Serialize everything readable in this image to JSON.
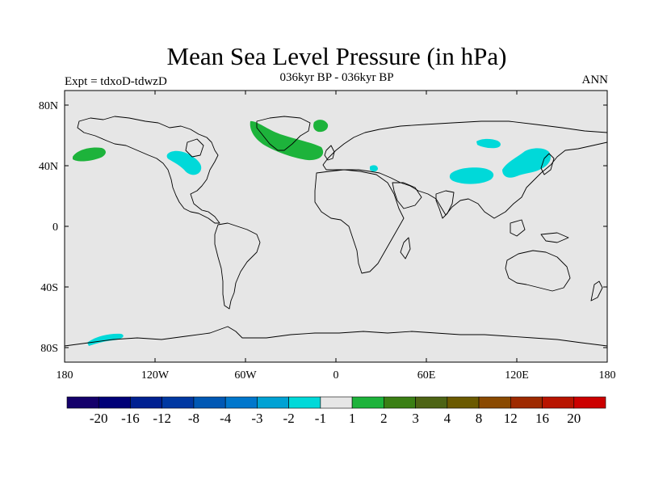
{
  "header": {
    "title": "Mean Sea Level Pressure (in hPa)",
    "subtitle": "036kyr BP - 036kyr BP",
    "left_label": "Expt = tdxoD-tdwzD",
    "right_label": "ANN"
  },
  "map": {
    "background_color": "#e6e6e6",
    "coastline_color": "#000000",
    "lat_ticks": [
      "80N",
      "40N",
      "0",
      "40S",
      "80S"
    ],
    "lon_ticks": [
      "180",
      "120W",
      "60W",
      "0",
      "60E",
      "120E",
      "180"
    ],
    "regions": [
      {
        "name": "north-pacific-positive",
        "value_class": "2",
        "color": "#1db33b"
      },
      {
        "name": "north-atlantic-positive",
        "value_class": "2",
        "color": "#1db33b"
      },
      {
        "name": "norwegian-sea-positive",
        "value_class": "2",
        "color": "#1db33b"
      },
      {
        "name": "northeast-pacific-negative",
        "value_class": "-1",
        "color": "#00d9d9"
      },
      {
        "name": "east-asia-negative",
        "value_class": "-1",
        "color": "#00d9d9"
      },
      {
        "name": "tibet-negative",
        "value_class": "-1",
        "color": "#00d9d9"
      },
      {
        "name": "siberia-negative",
        "value_class": "-1",
        "color": "#00d9d9"
      },
      {
        "name": "black-sea-negative",
        "value_class": "-1",
        "color": "#00d9d9"
      },
      {
        "name": "antarctic-negative",
        "value_class": "-1",
        "color": "#00d9d9"
      }
    ]
  },
  "colorbar": {
    "colors": [
      "#14006b",
      "#000078",
      "#002091",
      "#0038a2",
      "#0058b4",
      "#0077cc",
      "#00a2d4",
      "#00d9d9",
      "#e6e6e6",
      "#1db33b",
      "#3a7f14",
      "#4d6414",
      "#6b5a00",
      "#8a4a00",
      "#9e2a00",
      "#b81400",
      "#cc0000"
    ],
    "labels": [
      "-20",
      "-16",
      "-12",
      "-8",
      "-4",
      "-3",
      "-2",
      "-1",
      "1",
      "2",
      "3",
      "4",
      "8",
      "12",
      "16",
      "20"
    ]
  }
}
